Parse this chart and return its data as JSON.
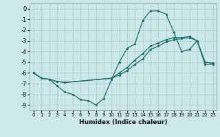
{
  "xlabel": "Humidex (Indice chaleur)",
  "xlim": [
    -0.5,
    23.5
  ],
  "ylim": [
    -9.5,
    0.5
  ],
  "yticks": [
    0,
    -1,
    -2,
    -3,
    -4,
    -5,
    -6,
    -7,
    -8,
    -9
  ],
  "xticks": [
    0,
    1,
    2,
    3,
    4,
    5,
    6,
    7,
    8,
    9,
    10,
    11,
    12,
    13,
    14,
    15,
    16,
    17,
    18,
    19,
    20,
    21,
    22,
    23
  ],
  "bg_color": "#cce8e8",
  "grid_color": "#aacccc",
  "line_color": "#1a6b6b",
  "line1_x": [
    0,
    1,
    2,
    3,
    4,
    5,
    6,
    7,
    8,
    9,
    10,
    11,
    12,
    13,
    14,
    15,
    16,
    17,
    18,
    19,
    20,
    21,
    22,
    23
  ],
  "line1_y": [
    -6.0,
    -6.5,
    -6.6,
    -7.2,
    -7.8,
    -8.0,
    -8.5,
    -8.6,
    -9.0,
    -8.4,
    -6.6,
    -5.0,
    -3.7,
    -3.3,
    -1.1,
    -0.2,
    -0.2,
    -0.5,
    -2.2,
    -4.0,
    -3.8,
    -3.0,
    -5.2,
    -5.2
  ],
  "line2_x": [
    0,
    1,
    2,
    3,
    4,
    10,
    11,
    12,
    13,
    14,
    15,
    16,
    17,
    18,
    19,
    20,
    21,
    22,
    23
  ],
  "line2_y": [
    -6.0,
    -6.5,
    -6.6,
    -6.8,
    -6.9,
    -6.5,
    -6.0,
    -5.5,
    -4.8,
    -4.2,
    -3.5,
    -3.2,
    -2.9,
    -2.7,
    -2.7,
    -2.6,
    -3.0,
    -5.0,
    -5.1
  ],
  "line3_x": [
    0,
    1,
    2,
    3,
    4,
    10,
    11,
    12,
    13,
    14,
    15,
    16,
    17,
    18,
    19,
    20,
    21,
    22,
    23
  ],
  "line3_y": [
    -6.0,
    -6.5,
    -6.6,
    -6.8,
    -6.9,
    -6.5,
    -6.2,
    -5.8,
    -5.2,
    -4.7,
    -3.8,
    -3.5,
    -3.1,
    -2.9,
    -2.8,
    -2.7,
    -3.0,
    -5.0,
    -5.1
  ]
}
